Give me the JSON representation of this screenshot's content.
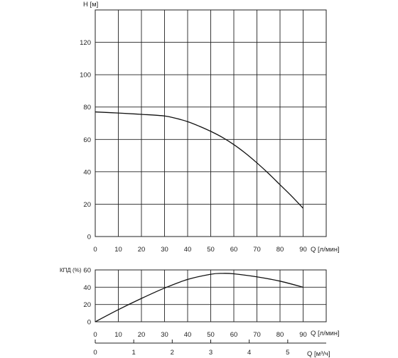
{
  "chart_data": [
    {
      "type": "line",
      "ylabel": "H [м]",
      "xlabel": "Q [л/мин]",
      "xlim": [
        0,
        100
      ],
      "ylim": [
        0,
        140
      ],
      "x_ticks": [
        "0",
        "10",
        "20",
        "30",
        "40",
        "50",
        "60",
        "70",
        "80",
        "90"
      ],
      "y_ticks": [
        "0",
        "20",
        "40",
        "60",
        "80",
        "100",
        "120"
      ],
      "grid": true,
      "series": [
        {
          "x": [
            0,
            10,
            20,
            30,
            35,
            40,
            45,
            50,
            55,
            60,
            65,
            70,
            75,
            80,
            85,
            90
          ],
          "y": [
            77,
            76.3,
            75.5,
            74.5,
            73,
            71,
            68.2,
            65,
            61.3,
            56.8,
            51.5,
            45.5,
            39,
            32,
            25,
            17.5
          ]
        }
      ]
    },
    {
      "type": "line",
      "ylabel": "КПД (%)",
      "xlabel": "Q [л/мин]",
      "xlim": [
        0,
        100
      ],
      "ylim": [
        0,
        60
      ],
      "x_ticks": [
        "0",
        "10",
        "20",
        "30",
        "40",
        "50",
        "60",
        "70",
        "80",
        "90"
      ],
      "y_ticks": [
        "0",
        "20",
        "40",
        "60"
      ],
      "grid": true,
      "series": [
        {
          "x": [
            0,
            10,
            20,
            30,
            40,
            50,
            55,
            60,
            70,
            80,
            90
          ],
          "y": [
            0,
            14,
            27,
            39,
            49,
            55,
            56,
            55.5,
            52,
            47,
            40
          ]
        }
      ]
    },
    {
      "type": "axis",
      "xlabel": "Q [м³/ч]",
      "x_ticks": [
        "0",
        "1",
        "2",
        "3",
        "4",
        "5"
      ]
    }
  ]
}
